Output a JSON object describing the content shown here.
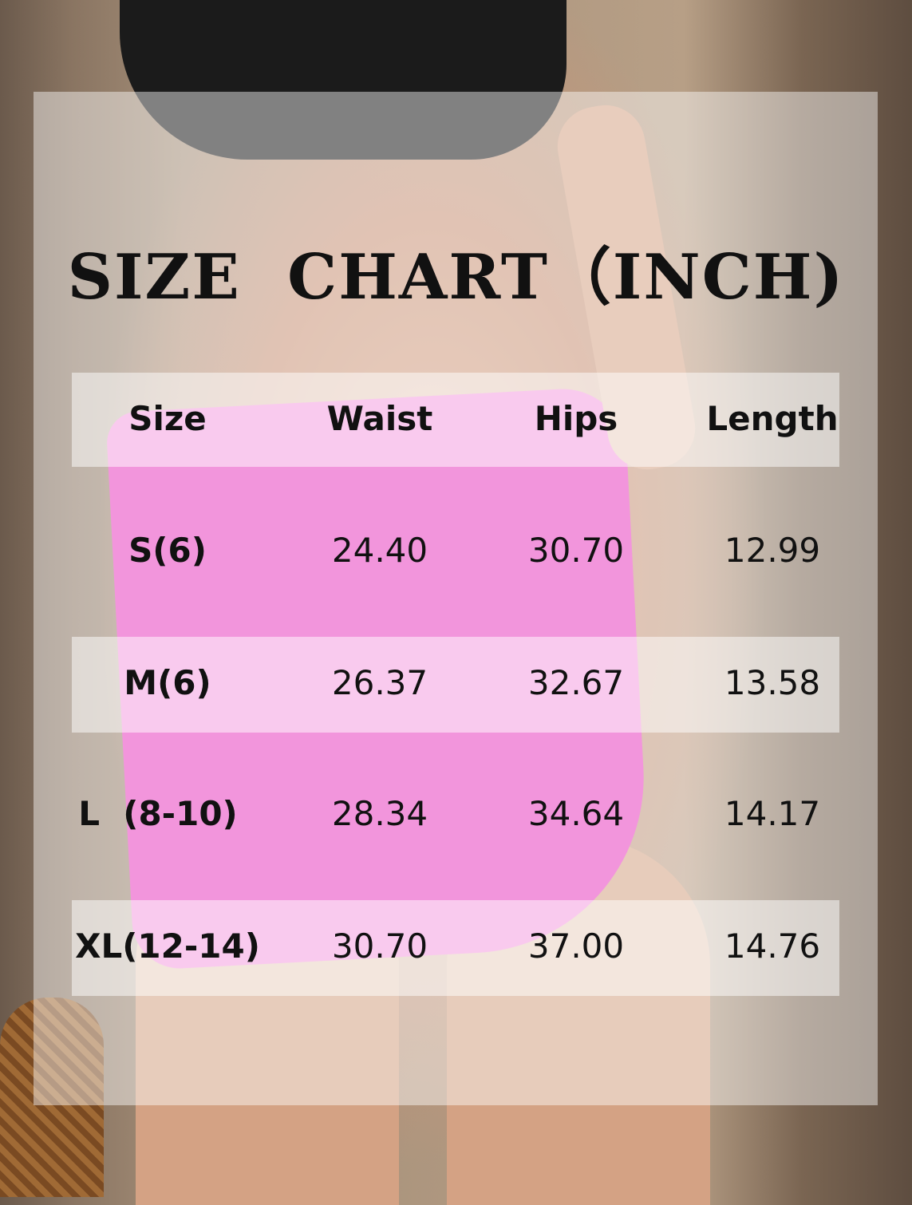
{
  "title": "SIZE  CHART（INCH)",
  "headers": [
    "Size",
    "Waist",
    "Hips",
    "Length"
  ],
  "rows": [
    [
      "S(6)",
      "24.40",
      "30.70",
      "12.99"
    ],
    [
      "M(6)",
      "26.37",
      "32.67",
      "13.58"
    ],
    [
      "L  (8-10)",
      "28.34",
      "34.64",
      "14.17"
    ],
    [
      "XL(12-14)",
      "30.70",
      "37.00",
      "14.76"
    ]
  ]
}
